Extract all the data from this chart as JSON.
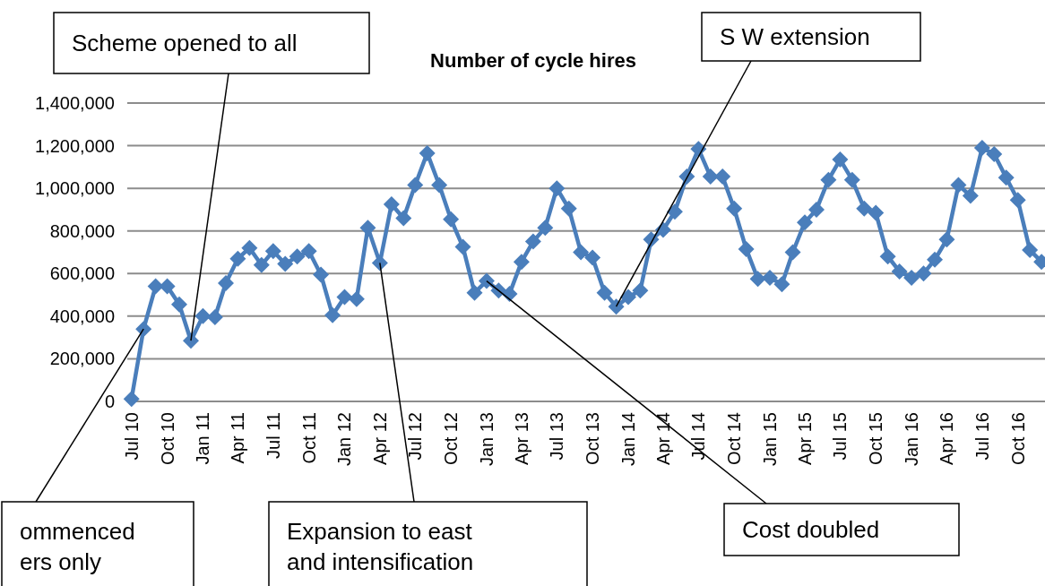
{
  "chart_data": {
    "type": "line",
    "title": "Number of cycle hires",
    "x": [
      "2010-07",
      "2010-08",
      "2010-09",
      "2010-10",
      "2010-11",
      "2010-12",
      "2011-01",
      "2011-02",
      "2011-03",
      "2011-04",
      "2011-05",
      "2011-06",
      "2011-07",
      "2011-08",
      "2011-09",
      "2011-10",
      "2011-11",
      "2011-12",
      "2012-01",
      "2012-02",
      "2012-03",
      "2012-04",
      "2012-05",
      "2012-06",
      "2012-07",
      "2012-08",
      "2012-09",
      "2012-10",
      "2012-11",
      "2012-12",
      "2013-01",
      "2013-02",
      "2013-03",
      "2013-04",
      "2013-05",
      "2013-06",
      "2013-07",
      "2013-08",
      "2013-09",
      "2013-10",
      "2013-11",
      "2013-12",
      "2014-01",
      "2014-02",
      "2014-03",
      "2014-04",
      "2014-05",
      "2014-06",
      "2014-07",
      "2014-08",
      "2014-09",
      "2014-10",
      "2014-11",
      "2014-12",
      "2015-01",
      "2015-02",
      "2015-03",
      "2015-04",
      "2015-05",
      "2015-06",
      "2015-07",
      "2015-08",
      "2015-09",
      "2015-10",
      "2015-11",
      "2015-12",
      "2016-01",
      "2016-02",
      "2016-03",
      "2016-04",
      "2016-05",
      "2016-06",
      "2016-07",
      "2016-08",
      "2016-09",
      "2016-10",
      "2016-11",
      "2016-12"
    ],
    "series": [
      {
        "color": "#4a7ebb",
        "values": [
          12000,
          340000,
          540000,
          540000,
          455000,
          285000,
          400000,
          395000,
          555000,
          670000,
          720000,
          640000,
          705000,
          645000,
          680000,
          705000,
          595000,
          405000,
          490000,
          480000,
          815000,
          650000,
          925000,
          860000,
          1015000,
          1165000,
          1015000,
          855000,
          725000,
          510000,
          565000,
          520000,
          505000,
          655000,
          750000,
          815000,
          1000000,
          905000,
          700000,
          675000,
          510000,
          445000,
          490000,
          520000,
          760000,
          805000,
          890000,
          1055000,
          1185000,
          1055000,
          1055000,
          905000,
          715000,
          575000,
          580000,
          550000,
          700000,
          840000,
          900000,
          1040000,
          1135000,
          1040000,
          905000,
          885000,
          680000,
          610000,
          580000,
          600000,
          665000,
          760000,
          1015000,
          965000,
          1190000,
          1160000,
          1050000,
          945000,
          710000,
          655000
        ]
      }
    ],
    "xlim": [
      "2010-06-20",
      "2016-12-10"
    ],
    "xticks": [
      {
        "value": "2010-07",
        "label": "Jul 10"
      },
      {
        "value": "2010-10",
        "label": "Oct 10"
      },
      {
        "value": "2011-01",
        "label": "Jan 11"
      },
      {
        "value": "2011-04",
        "label": "Apr 11"
      },
      {
        "value": "2011-07",
        "label": "Jul 11"
      },
      {
        "value": "2011-10",
        "label": "Oct 11"
      },
      {
        "value": "2012-01",
        "label": "Jan 12"
      },
      {
        "value": "2012-04",
        "label": "Apr 12"
      },
      {
        "value": "2012-07",
        "label": "Jul 12"
      },
      {
        "value": "2012-10",
        "label": "Oct 12"
      },
      {
        "value": "2013-01",
        "label": "Jan 13"
      },
      {
        "value": "2013-04",
        "label": "Apr 13"
      },
      {
        "value": "2013-07",
        "label": "Jul 13"
      },
      {
        "value": "2013-10",
        "label": "Oct 13"
      },
      {
        "value": "2014-01",
        "label": "Jan 14"
      },
      {
        "value": "2014-04",
        "label": "Apr 14"
      },
      {
        "value": "2014-07",
        "label": "Jul 14"
      },
      {
        "value": "2014-10",
        "label": "Oct 14"
      },
      {
        "value": "2015-01",
        "label": "Jan 15"
      },
      {
        "value": "2015-04",
        "label": "Apr 15"
      },
      {
        "value": "2015-07",
        "label": "Jul 15"
      },
      {
        "value": "2015-10",
        "label": "Oct 15"
      },
      {
        "value": "2016-01",
        "label": "Jan 16"
      },
      {
        "value": "2016-04",
        "label": "Apr 16"
      },
      {
        "value": "2016-07",
        "label": "Jul 16"
      },
      {
        "value": "2016-10",
        "label": "Oct 16"
      }
    ],
    "ylim": [
      0,
      1400000
    ],
    "yticks": [
      0,
      {
        "value": 200000,
        "label": "200,000"
      },
      {
        "value": 400000,
        "label": "400,000"
      },
      {
        "value": 600000,
        "label": "600,000"
      },
      {
        "value": 800000,
        "label": "800,000"
      },
      {
        "value": 1000000,
        "label": "1,000,000"
      },
      {
        "value": 1200000,
        "label": "1,200,000"
      },
      {
        "value": 1400000,
        "label": "1,400,000"
      }
    ],
    "grid": "y",
    "marker": "diamond",
    "line_style": "solid",
    "annotations": [
      {
        "text": "ommenced\ners only",
        "x": "2010-08",
        "y": 340000
      },
      {
        "text": "Scheme opened to all",
        "x": "2010-12",
        "y": 285000
      },
      {
        "text": "S W extension",
        "x": "2013-12",
        "y": 445000
      },
      {
        "text": "Cost doubled",
        "x": "2013-01",
        "y": 565000
      },
      {
        "text": "Expansion to east\nand intensification",
        "x": "2012-04",
        "y": 650000
      }
    ]
  }
}
